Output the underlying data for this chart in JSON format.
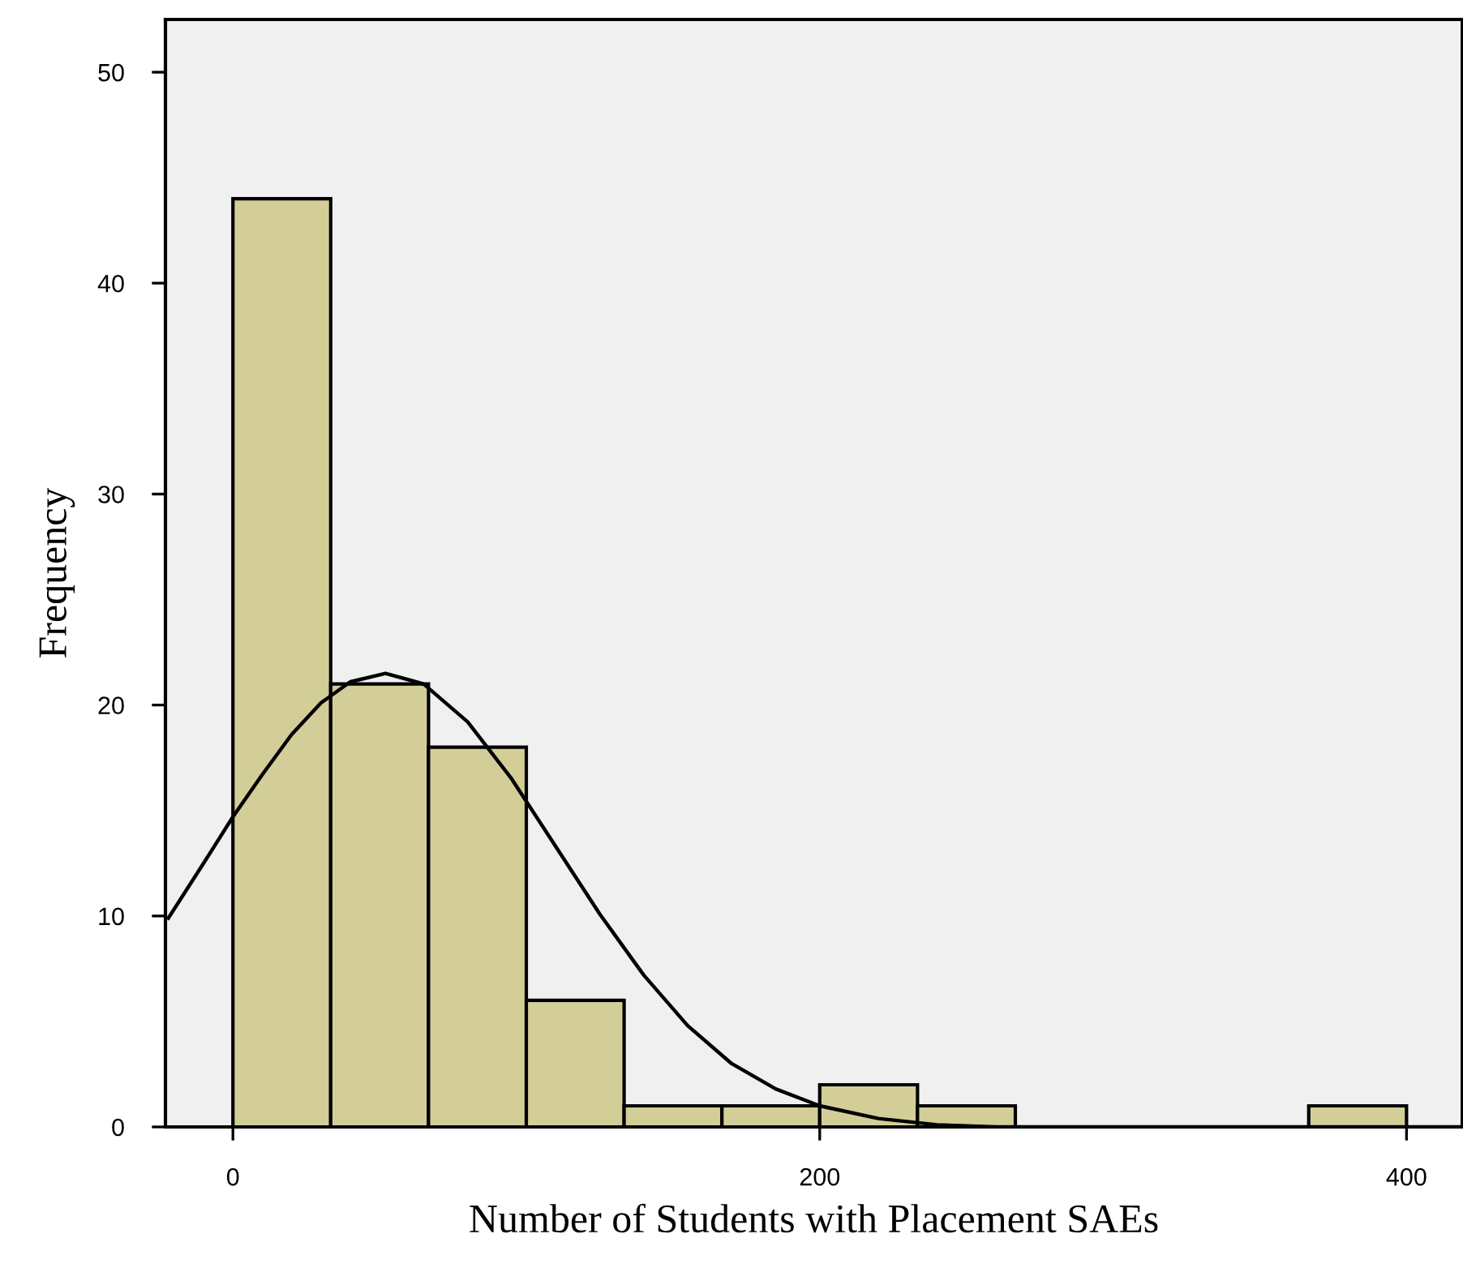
{
  "chart_data": {
    "type": "histogram",
    "xlabel": "Number of Students with Placement SAEs",
    "ylabel": "Frequency",
    "bins": [
      0,
      33.33,
      66.67,
      100,
      133.33,
      166.67,
      200,
      233.33,
      266.67,
      300,
      333.33,
      366.67,
      400
    ],
    "values": [
      44,
      21,
      18,
      6,
      1,
      1,
      2,
      1,
      0,
      0,
      0,
      1
    ],
    "color": "#d3ce98",
    "series": [
      {
        "type": "line",
        "color": "#000000",
        "x": [
          -22,
          -10,
          0,
          10,
          20,
          30,
          40,
          52,
          65,
          80,
          95,
          110,
          125,
          140,
          155,
          170,
          185,
          200,
          220,
          240,
          260,
          300,
          350,
          400,
          418
        ],
        "values": [
          9.9,
          12.5,
          14.7,
          16.7,
          18.6,
          20.1,
          21.1,
          21.5,
          21.0,
          19.2,
          16.5,
          13.3,
          10.1,
          7.2,
          4.8,
          3.0,
          1.8,
          1.0,
          0.4,
          0.1,
          0.0,
          0,
          0,
          0,
          0
        ]
      }
    ],
    "xlim": [
      -23,
      419
    ],
    "ylim": [
      0,
      52.5
    ],
    "xticks": [
      0,
      200,
      400
    ],
    "yticks": [
      0,
      10,
      20,
      30,
      40,
      50
    ],
    "grid": false,
    "legend": false
  }
}
